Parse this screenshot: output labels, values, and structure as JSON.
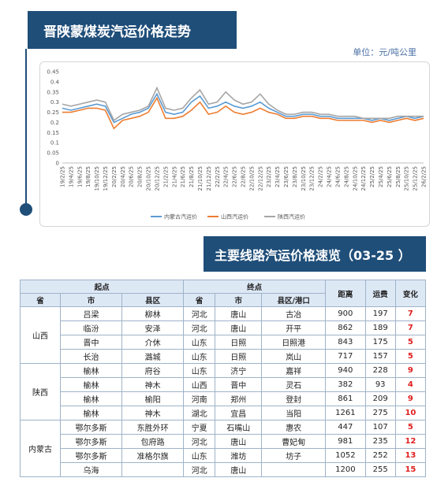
{
  "header": {
    "title": "晋陕蒙煤炭汽运价格走势",
    "unit": "单位：元/吨公里"
  },
  "chart_data": {
    "type": "line",
    "categories": [
      "19/2/25",
      "19/4/25",
      "19/6/25",
      "19/8/25",
      "19/10/25",
      "19/12/25",
      "20/2/25",
      "20/4/25",
      "20/6/25",
      "20/8/25",
      "20/10/25",
      "20/12/25",
      "21/2/25",
      "21/4/25",
      "21/6/25",
      "21/8/25",
      "21/10/25",
      "21/12/25",
      "22/2/25",
      "22/4/25",
      "22/6/25",
      "22/8/25",
      "22/10/25",
      "22/12/25",
      "23/2/25",
      "23/4/25",
      "23/6/25",
      "23/8/25",
      "23/10/25",
      "23/12/25",
      "24/2/25",
      "24/4/25",
      "24/6/25",
      "24/8/25",
      "24/10/25",
      "24/12/25",
      "25/2/25",
      "25/4/25",
      "25/6/25",
      "25/8/25",
      "25/10/25",
      "25/12/25",
      "26/2/25"
    ],
    "series": [
      {
        "name": "内蒙古汽运价",
        "color": "#5b9bd5",
        "values": [
          0.27,
          0.26,
          0.27,
          0.28,
          0.29,
          0.28,
          0.2,
          0.22,
          0.24,
          0.25,
          0.27,
          0.34,
          0.25,
          0.24,
          0.25,
          0.3,
          0.33,
          0.27,
          0.28,
          0.3,
          0.28,
          0.27,
          0.28,
          0.3,
          0.27,
          0.25,
          0.23,
          0.23,
          0.24,
          0.24,
          0.23,
          0.23,
          0.22,
          0.22,
          0.22,
          0.22,
          0.21,
          0.22,
          0.21,
          0.22,
          0.23,
          0.22,
          0.23
        ]
      },
      {
        "name": "山西汽运价",
        "color": "#ed7d31",
        "values": [
          0.25,
          0.25,
          0.26,
          0.27,
          0.27,
          0.26,
          0.17,
          0.21,
          0.22,
          0.23,
          0.25,
          0.32,
          0.22,
          0.22,
          0.23,
          0.26,
          0.3,
          0.24,
          0.25,
          0.28,
          0.25,
          0.24,
          0.25,
          0.27,
          0.25,
          0.24,
          0.22,
          0.22,
          0.23,
          0.23,
          0.22,
          0.22,
          0.21,
          0.21,
          0.21,
          0.21,
          0.2,
          0.21,
          0.2,
          0.21,
          0.22,
          0.21,
          0.22
        ]
      },
      {
        "name": "陕西汽运价",
        "color": "#a5a5a5",
        "values": [
          0.29,
          0.28,
          0.29,
          0.3,
          0.31,
          0.3,
          0.21,
          0.24,
          0.25,
          0.26,
          0.28,
          0.37,
          0.27,
          0.26,
          0.27,
          0.32,
          0.36,
          0.29,
          0.3,
          0.35,
          0.31,
          0.29,
          0.3,
          0.34,
          0.29,
          0.26,
          0.24,
          0.24,
          0.25,
          0.25,
          0.24,
          0.24,
          0.23,
          0.23,
          0.23,
          0.22,
          0.22,
          0.22,
          0.22,
          0.23,
          0.23,
          0.23,
          0.23
        ]
      }
    ],
    "ylim": [
      0,
      0.45
    ],
    "yticks": [
      0,
      0.05,
      0.1,
      0.15,
      0.2,
      0.25,
      0.3,
      0.35,
      0.4,
      0.45
    ],
    "legend": "bottom"
  },
  "section": {
    "title": "主要线路汽运价格速览（03-25 ）"
  },
  "table": {
    "header_top": [
      "起点",
      "终点",
      "距离",
      "运费",
      "变化"
    ],
    "header_sub": [
      "省",
      "市",
      "县区",
      "省",
      "市",
      "县区/港口"
    ],
    "groups": [
      {
        "province": "山西",
        "rows": [
          [
            "吕梁",
            "柳林",
            "河北",
            "唐山",
            "古冶",
            900,
            197,
            7
          ],
          [
            "临汾",
            "安泽",
            "河北",
            "唐山",
            "开平",
            862,
            189,
            7
          ],
          [
            "晋中",
            "介休",
            "山东",
            "日照",
            "日照港",
            843,
            175,
            5
          ],
          [
            "长治",
            "潞城",
            "山东",
            "日照",
            "岚山",
            717,
            157,
            5
          ]
        ]
      },
      {
        "province": "陕西",
        "rows": [
          [
            "榆林",
            "府谷",
            "山东",
            "济宁",
            "嘉祥",
            940,
            228,
            9
          ],
          [
            "榆林",
            "神木",
            "山西",
            "晋中",
            "灵石",
            382,
            93,
            4
          ],
          [
            "榆林",
            "榆阳",
            "河南",
            "郑州",
            "登封",
            861,
            209,
            9
          ],
          [
            "榆林",
            "神木",
            "湖北",
            "宜昌",
            "当阳",
            1261,
            275,
            10
          ]
        ]
      },
      {
        "province": "内蒙古",
        "rows": [
          [
            "鄂尔多斯",
            "东胜外环",
            "宁夏",
            "石嘴山",
            "惠农",
            447,
            107,
            5
          ],
          [
            "鄂尔多斯",
            "包府路",
            "河北",
            "唐山",
            "曹妃甸",
            981,
            235,
            12
          ],
          [
            "鄂尔多斯",
            "准格尔旗",
            "山东",
            "潍坊",
            "坊子",
            1052,
            252,
            13
          ],
          [
            "乌海",
            null,
            "河北",
            "唐山",
            null,
            1200,
            255,
            15
          ]
        ]
      }
    ]
  }
}
